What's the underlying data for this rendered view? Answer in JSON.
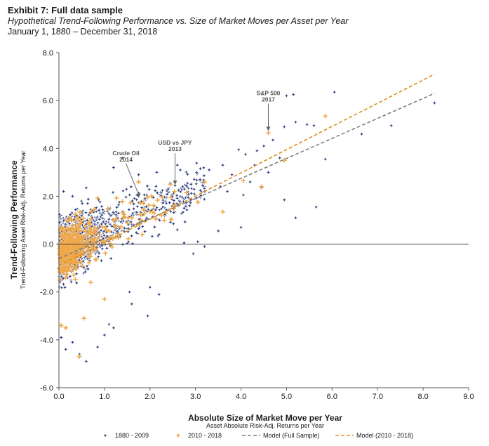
{
  "header": {
    "exhibit": "Exhibit 7: Full data sample",
    "subtitle": "Hypothetical Trend-Following Performance vs. Size of Market Moves per Asset per Year",
    "date_range": "January 1, 1880 – December 31, 2018"
  },
  "colors": {
    "series_1880_2009": "#2e3f7f",
    "series_2010_2018": "#f0a94a",
    "model_full": "#7f7f7f",
    "model_2010_2018": "#e08e1b",
    "marker_outline": "#ffffff",
    "axis": "#555555"
  },
  "chart_data": {
    "type": "scatter",
    "title": "",
    "xlabel": "Absolute Size of Market Move per Year",
    "xlabel_sub": "Asset Absolute Risk-Adj. Returns per Year",
    "ylabel": "Trend-Following Performance",
    "ylabel_sub": "Trend-Following Asset Risk-Adj. Returns per Year",
    "xlim": [
      0,
      9
    ],
    "ylim": [
      -6,
      8
    ],
    "x_ticks": [
      "0.0",
      "1.0",
      "2.0",
      "3.0",
      "4.0",
      "5.0",
      "6.0",
      "7.0",
      "8.0",
      "9.0"
    ],
    "y_ticks": [
      "8.0",
      "6.0",
      "4.0",
      "2.0",
      "0.0",
      "-2.0",
      "-4.0",
      "-6.0"
    ],
    "grid": false,
    "legend_position": "bottom",
    "series": [
      {
        "name": "1880 - 2009",
        "marker": "star",
        "points": [
          [
            5.0,
            6.2
          ],
          [
            5.15,
            6.25
          ],
          [
            6.05,
            6.35
          ],
          [
            8.25,
            5.9
          ],
          [
            7.3,
            4.95
          ],
          [
            6.65,
            4.6
          ],
          [
            5.45,
            5.0
          ],
          [
            5.6,
            4.95
          ],
          [
            4.95,
            4.9
          ],
          [
            5.2,
            5.1
          ],
          [
            5.85,
            3.55
          ],
          [
            5.65,
            1.55
          ],
          [
            5.2,
            1.1
          ],
          [
            4.95,
            1.85
          ],
          [
            4.7,
            4.35
          ],
          [
            4.5,
            4.1
          ],
          [
            4.35,
            3.9
          ],
          [
            4.1,
            3.75
          ],
          [
            4.3,
            3.3
          ],
          [
            4.85,
            3.6
          ],
          [
            4.6,
            3.0
          ],
          [
            4.2,
            2.6
          ],
          [
            3.95,
            3.95
          ],
          [
            3.6,
            3.3
          ],
          [
            4.0,
            0.7
          ],
          [
            3.5,
            0.55
          ],
          [
            4.45,
            2.35
          ],
          [
            3.8,
            2.9
          ],
          [
            3.3,
            3.1
          ],
          [
            3.1,
            2.7
          ],
          [
            2.9,
            2.5
          ],
          [
            3.2,
            2.2
          ],
          [
            2.75,
            1.5
          ],
          [
            2.6,
            0.6
          ],
          [
            2.4,
            2.3
          ],
          [
            2.2,
            0.4
          ],
          [
            2.0,
            -1.8
          ],
          [
            2.2,
            -2.1
          ],
          [
            1.95,
            -3.0
          ],
          [
            1.6,
            -2.5
          ],
          [
            1.2,
            -3.5
          ],
          [
            1.1,
            -3.35
          ],
          [
            1.0,
            -3.8
          ],
          [
            0.85,
            -4.3
          ],
          [
            0.6,
            -4.9
          ],
          [
            0.45,
            -4.6
          ],
          [
            0.3,
            -4.1
          ],
          [
            0.15,
            -4.4
          ],
          [
            0.05,
            -3.9
          ],
          [
            1.2,
            3.2
          ],
          [
            1.4,
            3.6
          ],
          [
            0.6,
            2.35
          ],
          [
            0.3,
            2.0
          ],
          [
            0.1,
            2.2
          ],
          [
            1.75,
            2.9
          ],
          [
            2.15,
            3.0
          ],
          [
            2.95,
            -0.4
          ],
          [
            3.2,
            -0.1
          ],
          [
            3.05,
            0.1
          ],
          [
            2.75,
            0.05
          ],
          [
            2.6,
            3.3
          ],
          [
            1.55,
            -2.0
          ],
          [
            2.9,
            1.85
          ],
          [
            3.55,
            2.4
          ],
          [
            3.7,
            2.2
          ],
          [
            4.05,
            2.05
          ]
        ],
        "dense_cluster": {
          "x_range": [
            0.0,
            3.3
          ],
          "y_range": [
            -2.8,
            3.0
          ],
          "slope_approx": 0.9,
          "intercept_approx": -0.3
        }
      },
      {
        "name": "2010 - 2018",
        "marker": "plus",
        "points": [
          [
            5.85,
            5.35
          ],
          [
            4.6,
            4.65
          ],
          [
            4.95,
            3.5
          ],
          [
            4.45,
            2.4
          ],
          [
            4.05,
            2.65
          ],
          [
            3.6,
            1.35
          ],
          [
            3.2,
            2.6
          ],
          [
            2.8,
            2.15
          ],
          [
            0.45,
            -4.7
          ],
          [
            0.15,
            -3.5
          ],
          [
            0.05,
            -3.4
          ],
          [
            0.55,
            -3.1
          ],
          [
            1.0,
            -2.3
          ],
          [
            1.75,
            2.6
          ],
          [
            1.95,
            1.95
          ],
          [
            2.45,
            2.5
          ],
          [
            3.05,
            1.75
          ],
          [
            1.25,
            1.05
          ],
          [
            0.85,
            0.25
          ],
          [
            0.3,
            -0.8
          ],
          [
            1.6,
            1.1
          ],
          [
            2.25,
            1.2
          ],
          [
            0.7,
            -1.6
          ],
          [
            1.1,
            0.55
          ]
        ],
        "dense_cluster": {
          "x_range": [
            0.0,
            2.8
          ],
          "y_range": [
            -2.5,
            2.6
          ],
          "slope_approx": 0.9,
          "intercept_approx": -0.4
        }
      },
      {
        "name": "Model (Full Sample)",
        "type": "line",
        "style": "dashed",
        "points": [
          [
            0.0,
            -0.6
          ],
          [
            8.25,
            6.3
          ]
        ]
      },
      {
        "name": "Model (2010 - 2018)",
        "type": "line",
        "style": "dashed",
        "points": [
          [
            0.0,
            -0.9
          ],
          [
            8.25,
            7.1
          ]
        ]
      }
    ],
    "annotations": [
      {
        "line1": "Crude Oil",
        "line2": "2014",
        "x": 1.75,
        "y": 1.9
      },
      {
        "line1": "USD vs JPY",
        "line2": "2013",
        "x": 2.55,
        "y": 2.45
      },
      {
        "line1": "S&P 500",
        "line2": "2017",
        "x": 4.6,
        "y": 4.7
      }
    ]
  }
}
